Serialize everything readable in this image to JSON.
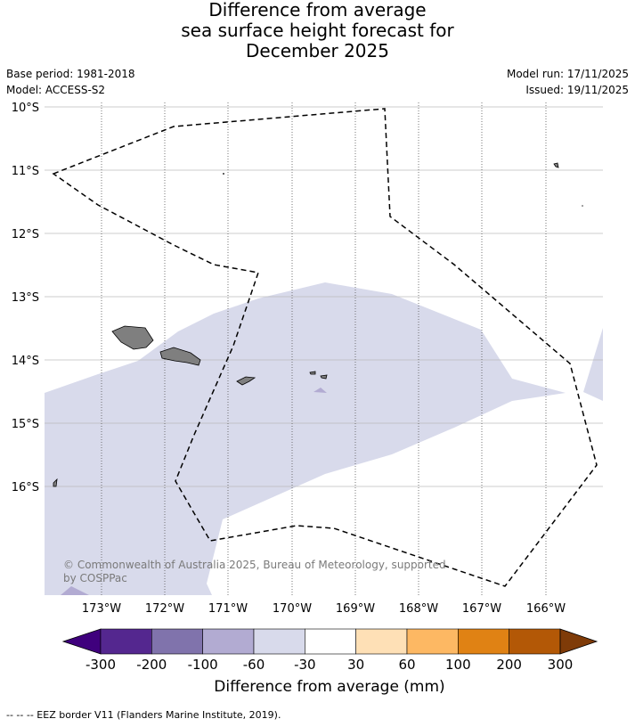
{
  "title_lines": [
    "Difference from average",
    "sea surface height forecast for",
    "December 2025"
  ],
  "meta_left": [
    "Base period: 1981-2018",
    "Model: ACCESS-S2"
  ],
  "meta_right": [
    "Model run: 17/11/2025",
    "Issued: 19/11/2025"
  ],
  "lat_labels": [
    "10°S",
    "11°S",
    "12°S",
    "13°S",
    "14°S",
    "15°S",
    "16°S"
  ],
  "lon_labels": [
    "173°W",
    "172°W",
    "171°W",
    "170°W",
    "169°W",
    "168°W",
    "167°W",
    "166°W"
  ],
  "copyright": [
    "© Commonwealth of Australia 2025, Bureau of Meteorology, supported",
    "by COSPPac"
  ],
  "colorbar": {
    "tick_labels": [
      "-300",
      "-200",
      "-100",
      "-60",
      "-30",
      "30",
      "60",
      "100",
      "200",
      "300"
    ],
    "colors": [
      "#3f007d",
      "#54278f",
      "#8073ac",
      "#b2abd2",
      "#d8daeb",
      "#ffffff",
      "#fee0b6",
      "#fdb863",
      "#e08214",
      "#b35806",
      "#7f3b08"
    ],
    "label": "Difference from average (mm)"
  },
  "legend_text": "-- -- -- EEZ border V11 (Flanders Marine Institute, 2019)."
}
